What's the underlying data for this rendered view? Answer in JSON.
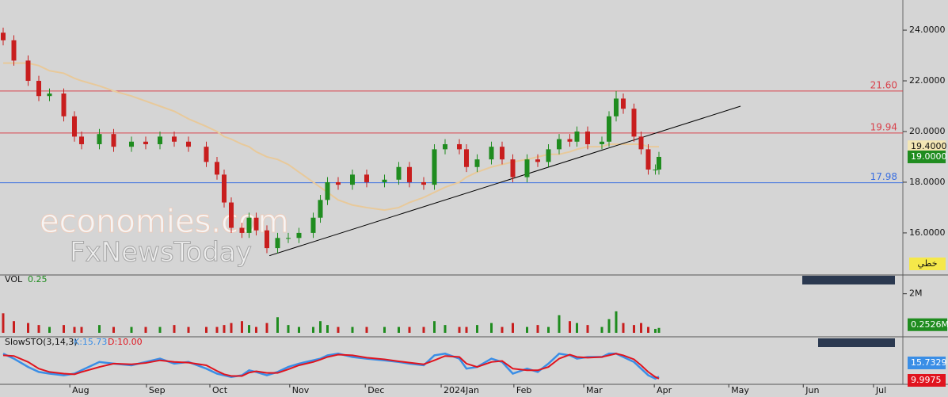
{
  "chart_data": {
    "type": "candlestick",
    "x": [
      0,
      3,
      7,
      10,
      13,
      17,
      20,
      22,
      27,
      31,
      36,
      40,
      44,
      48,
      52,
      57,
      60,
      62,
      64,
      67,
      69,
      71,
      74,
      77,
      80,
      83,
      87,
      89,
      91,
      94,
      98,
      102,
      107,
      111,
      114,
      118,
      121,
      124,
      128,
      130,
      133,
      137,
      140,
      143,
      147,
      150,
      153,
      156,
      159,
      161,
      164,
      168,
      170,
      172,
      174,
      177,
      179,
      181,
      183,
      184
    ],
    "open": [
      23.9,
      23.6,
      22.8,
      22.0,
      21.4,
      21.5,
      20.6,
      19.8,
      19.5,
      19.9,
      19.4,
      19.6,
      19.5,
      19.8,
      19.6,
      19.4,
      18.8,
      18.3,
      17.2,
      16.2,
      16.0,
      16.6,
      16.1,
      15.4,
      15.8,
      15.8,
      16.0,
      16.6,
      17.3,
      18.0,
      17.9,
      18.3,
      18.0,
      18.1,
      18.6,
      18.0,
      17.9,
      19.3,
      19.5,
      19.3,
      18.6,
      18.9,
      19.4,
      18.9,
      18.2,
      18.9,
      18.8,
      19.3,
      19.7,
      19.6,
      20.0,
      19.5,
      19.6,
      20.6,
      21.3,
      20.9,
      19.8,
      19.3,
      18.5,
      18.5
    ],
    "high": [
      24.1,
      23.8,
      23.0,
      22.2,
      21.7,
      21.7,
      20.8,
      20.0,
      20.1,
      20.1,
      19.8,
      19.8,
      20.0,
      20.0,
      19.8,
      19.6,
      19.0,
      18.5,
      17.4,
      16.4,
      16.8,
      16.8,
      16.3,
      16.0,
      16.0,
      16.2,
      16.8,
      17.5,
      18.2,
      18.2,
      18.5,
      18.5,
      18.3,
      18.8,
      18.8,
      18.2,
      19.5,
      19.7,
      19.7,
      19.5,
      19.1,
      19.6,
      19.6,
      19.1,
      19.1,
      19.1,
      19.5,
      19.9,
      19.9,
      20.2,
      20.2,
      19.8,
      20.8,
      21.6,
      21.5,
      21.1,
      20.0,
      19.5,
      18.7,
      19.2
    ],
    "low": [
      23.4,
      22.6,
      21.8,
      21.2,
      21.2,
      20.4,
      19.6,
      19.3,
      19.3,
      19.2,
      19.2,
      19.3,
      19.3,
      19.4,
      19.2,
      18.6,
      18.1,
      17.0,
      16.0,
      15.8,
      15.8,
      15.9,
      15.2,
      15.2,
      15.6,
      15.6,
      15.8,
      16.4,
      17.1,
      17.7,
      17.7,
      17.8,
      17.8,
      17.9,
      17.8,
      17.7,
      17.7,
      19.1,
      19.1,
      18.4,
      18.4,
      18.7,
      18.7,
      18.0,
      18.0,
      18.6,
      18.6,
      19.1,
      19.4,
      19.4,
      19.3,
      19.3,
      19.4,
      20.4,
      20.7,
      19.6,
      19.1,
      18.3,
      18.3,
      18.3
    ],
    "close": [
      23.6,
      22.8,
      22.0,
      21.4,
      21.5,
      20.6,
      19.8,
      19.5,
      19.9,
      19.4,
      19.6,
      19.5,
      19.8,
      19.6,
      19.4,
      18.8,
      18.3,
      17.2,
      16.2,
      16.0,
      16.6,
      16.1,
      15.4,
      15.8,
      15.8,
      16.0,
      16.6,
      17.3,
      18.0,
      17.9,
      18.3,
      18.0,
      18.1,
      18.6,
      18.0,
      17.9,
      19.3,
      19.5,
      19.3,
      18.6,
      18.9,
      19.4,
      18.9,
      18.2,
      18.9,
      18.8,
      19.3,
      19.7,
      19.6,
      20.0,
      19.5,
      19.6,
      20.6,
      21.3,
      20.9,
      19.8,
      19.3,
      18.5,
      18.5,
      19.0
    ],
    "up_color": "#1f8c1f",
    "down_color": "#c81e1e",
    "xlim": [
      0,
      252
    ],
    "xticks": [
      {
        "value": 18.7,
        "label": "Aug"
      },
      {
        "value": 40.2,
        "label": "Sep"
      },
      {
        "value": 58,
        "label": "Oct"
      },
      {
        "value": 80.4,
        "label": "Nov"
      },
      {
        "value": 101.6,
        "label": "Dec"
      },
      {
        "value": 122.9,
        "label": "2024Jan"
      },
      {
        "value": 143.3,
        "label": "Feb"
      },
      {
        "value": 162.9,
        "label": "Mar"
      },
      {
        "value": 182.7,
        "label": "Apr"
      },
      {
        "value": 203.6,
        "label": "May"
      },
      {
        "value": 224.5,
        "label": "Jun"
      },
      {
        "value": 244.2,
        "label": "Jul"
      }
    ],
    "ylim": [
      14.34,
      25.19
    ],
    "yticks": [
      {
        "value": 16,
        "label": "16.0000"
      },
      {
        "value": 18,
        "label": "18.0000"
      },
      {
        "value": 20,
        "label": "20.0000"
      },
      {
        "value": 22,
        "label": "22.0000"
      },
      {
        "value": 24,
        "label": "24.0000"
      }
    ],
    "ma": {
      "color": "#e8c99a",
      "values": [
        22.7,
        22.7,
        22.7,
        22.6,
        22.4,
        22.3,
        22.1,
        22.0,
        21.8,
        21.6,
        21.4,
        21.2,
        21.0,
        20.8,
        20.5,
        20.2,
        20.0,
        19.8,
        19.7,
        19.5,
        19.4,
        19.2,
        19.0,
        18.9,
        18.7,
        18.4,
        18.0,
        17.8,
        17.6,
        17.3,
        17.1,
        17.0,
        16.9,
        17.0,
        17.2,
        17.4,
        17.6,
        17.8,
        18.0,
        18.2,
        18.4,
        18.6,
        18.7,
        18.8,
        18.9,
        19.0,
        19.1,
        19.1,
        19.2,
        19.3,
        19.4,
        19.4,
        19.5,
        19.5,
        19.5,
        19.5,
        19.5,
        19.4,
        19.4,
        19.4
      ]
    },
    "hlines": [
      {
        "value": 21.6,
        "label": "21.60",
        "color": "#d9414b"
      },
      {
        "value": 19.94,
        "color": "#d9414b"
      },
      {
        "value": 17.98,
        "color": "#3b6fe0"
      }
    ],
    "trendline": {
      "color": "#000000",
      "x": [
        74.7,
        206.9
      ],
      "y": [
        15.1,
        21.0
      ]
    },
    "price_tags": [
      {
        "value": 19.4,
        "label": "19.4000",
        "color": "#f3e6b4"
      },
      {
        "value": 19.0,
        "label": "19.0000",
        "color": "#1f8c1f"
      }
    ],
    "side_label": "خطي",
    "watermark": [
      "economies.com",
      "FxNewsToday"
    ],
    "volume": {
      "label": "VOL",
      "value_label": "0.25",
      "color": "#1f8c1f",
      "down_color": "#c81e1e",
      "values": [
        1.0,
        0.6,
        0.5,
        0.4,
        0.3,
        0.4,
        0.3,
        0.3,
        0.4,
        0.3,
        0.3,
        0.3,
        0.3,
        0.4,
        0.3,
        0.3,
        0.3,
        0.4,
        0.5,
        0.6,
        0.4,
        0.3,
        0.5,
        0.8,
        0.4,
        0.3,
        0.3,
        0.6,
        0.4,
        0.3,
        0.3,
        0.3,
        0.3,
        0.3,
        0.3,
        0.3,
        0.6,
        0.4,
        0.3,
        0.3,
        0.4,
        0.5,
        0.3,
        0.5,
        0.3,
        0.4,
        0.3,
        0.9,
        0.6,
        0.5,
        0.4,
        0.3,
        0.7,
        1.1,
        0.5,
        0.4,
        0.5,
        0.3,
        0.2,
        0.2526
      ],
      "ylim": [
        0,
        2.96
      ],
      "yticks": [
        {
          "value": 2,
          "label": "2M"
        }
      ],
      "tag": {
        "value": 0.2526,
        "label": "0.2526M",
        "color": "#1f8c1f"
      }
    },
    "stochastic": {
      "label": "SlowSTO(3,14,3)",
      "k_label": "K:15.73",
      "d_label": "D:10.00",
      "k_color": "#3a8ee6",
      "d_color": "#e0141e",
      "ylim": [
        0,
        100
      ],
      "k": [
        85,
        70,
        45,
        30,
        25,
        20,
        25,
        35,
        60,
        55,
        50,
        60,
        70,
        55,
        60,
        40,
        25,
        20,
        15,
        20,
        35,
        30,
        20,
        30,
        45,
        55,
        65,
        70,
        80,
        85,
        75,
        70,
        65,
        60,
        55,
        50,
        80,
        85,
        70,
        40,
        45,
        70,
        60,
        25,
        40,
        30,
        55,
        85,
        80,
        70,
        75,
        75,
        85,
        85,
        75,
        60,
        40,
        20,
        10,
        15.73
      ],
      "d": [
        80,
        78,
        60,
        40,
        30,
        25,
        23,
        30,
        45,
        55,
        53,
        57,
        65,
        60,
        58,
        50,
        33,
        23,
        18,
        18,
        28,
        32,
        27,
        27,
        38,
        50,
        60,
        67,
        75,
        82,
        80,
        73,
        68,
        62,
        58,
        53,
        65,
        78,
        75,
        55,
        45,
        60,
        63,
        40,
        35,
        35,
        45,
        70,
        82,
        75,
        73,
        75,
        80,
        85,
        80,
        68,
        50,
        30,
        15,
        10
      ],
      "tags": [
        {
          "value": 15.7329,
          "color": "#3a8ee6"
        },
        {
          "value": 9.9975,
          "color": "#e0141e"
        }
      ]
    }
  }
}
